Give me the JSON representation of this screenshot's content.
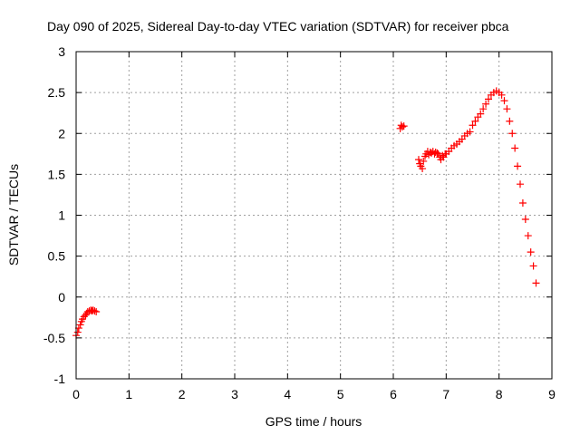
{
  "chart_data": {
    "type": "scatter",
    "title": "Day 090 of 2025, Sidereal Day-to-day VTEC variation (SDTVAR) for receiver pbca",
    "xlabel": "GPS time / hours",
    "ylabel": "SDTVAR / TECUs",
    "xlim": [
      0,
      9
    ],
    "ylim": [
      -1,
      3
    ],
    "xticks": [
      "0",
      "1",
      "2",
      "3",
      "4",
      "5",
      "6",
      "7",
      "8",
      "9"
    ],
    "yticks": [
      "-1",
      "-0.5",
      "0",
      "0.5",
      "1",
      "1.5",
      "2",
      "2.5",
      "3"
    ],
    "grid": true,
    "marker": "+",
    "color": "#ff0000",
    "series": [
      {
        "x": [
          0.0,
          0.03,
          0.05,
          0.08,
          0.1,
          0.12,
          0.15,
          0.18,
          0.2,
          0.22,
          0.25,
          0.28,
          0.3,
          0.32,
          0.35,
          0.38,
          6.13,
          6.15,
          6.17,
          6.2,
          6.48,
          6.5,
          6.52,
          6.55,
          6.57,
          6.6,
          6.62,
          6.65,
          6.67,
          6.7,
          6.72,
          6.75,
          6.78,
          6.8,
          6.83,
          6.85,
          6.88,
          6.9,
          6.93,
          6.95,
          6.98,
          7.0,
          7.05,
          7.1,
          7.15,
          7.2,
          7.25,
          7.3,
          7.35,
          7.4,
          7.45,
          7.5,
          7.55,
          7.6,
          7.65,
          7.7,
          7.75,
          7.8,
          7.85,
          7.9,
          7.95,
          8.0,
          8.05,
          8.1,
          8.15,
          8.2,
          8.25,
          8.3,
          8.35,
          8.4,
          8.45,
          8.5,
          8.55,
          8.6,
          8.65,
          8.7
        ],
        "y": [
          -0.47,
          -0.43,
          -0.38,
          -0.34,
          -0.3,
          -0.27,
          -0.24,
          -0.22,
          -0.2,
          -0.18,
          -0.17,
          -0.16,
          -0.17,
          -0.16,
          -0.17,
          -0.18,
          2.06,
          2.1,
          2.08,
          2.09,
          1.68,
          1.63,
          1.6,
          1.57,
          1.66,
          1.72,
          1.75,
          1.78,
          1.74,
          1.77,
          1.76,
          1.78,
          1.75,
          1.77,
          1.76,
          1.75,
          1.71,
          1.68,
          1.73,
          1.71,
          1.75,
          1.75,
          1.78,
          1.82,
          1.85,
          1.87,
          1.9,
          1.93,
          1.97,
          2.0,
          2.02,
          2.1,
          2.15,
          2.2,
          2.24,
          2.3,
          2.36,
          2.42,
          2.47,
          2.5,
          2.52,
          2.5,
          2.47,
          2.4,
          2.3,
          2.15,
          2.0,
          1.82,
          1.6,
          1.38,
          1.15,
          0.95,
          0.75,
          0.55,
          0.38,
          0.17
        ]
      }
    ]
  }
}
